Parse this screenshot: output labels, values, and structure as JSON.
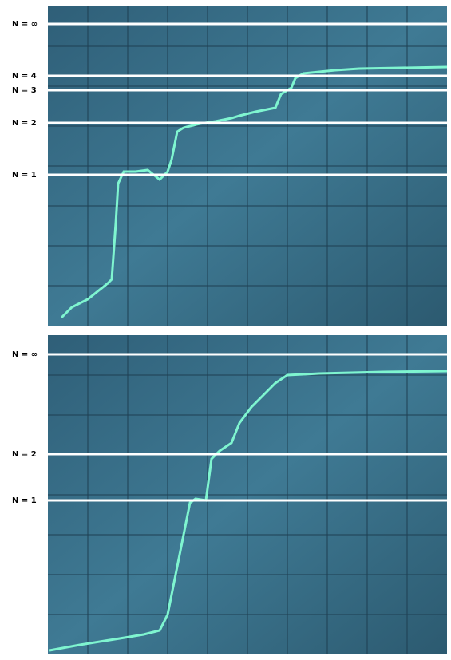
{
  "panels": [
    {
      "labels": [
        "N = ∞",
        "N = 4",
        "N = 3",
        "N = 2",
        "N = 1"
      ]
    },
    {
      "labels": [
        "N = ∞",
        "N = 2",
        "N = 1"
      ]
    }
  ]
}
